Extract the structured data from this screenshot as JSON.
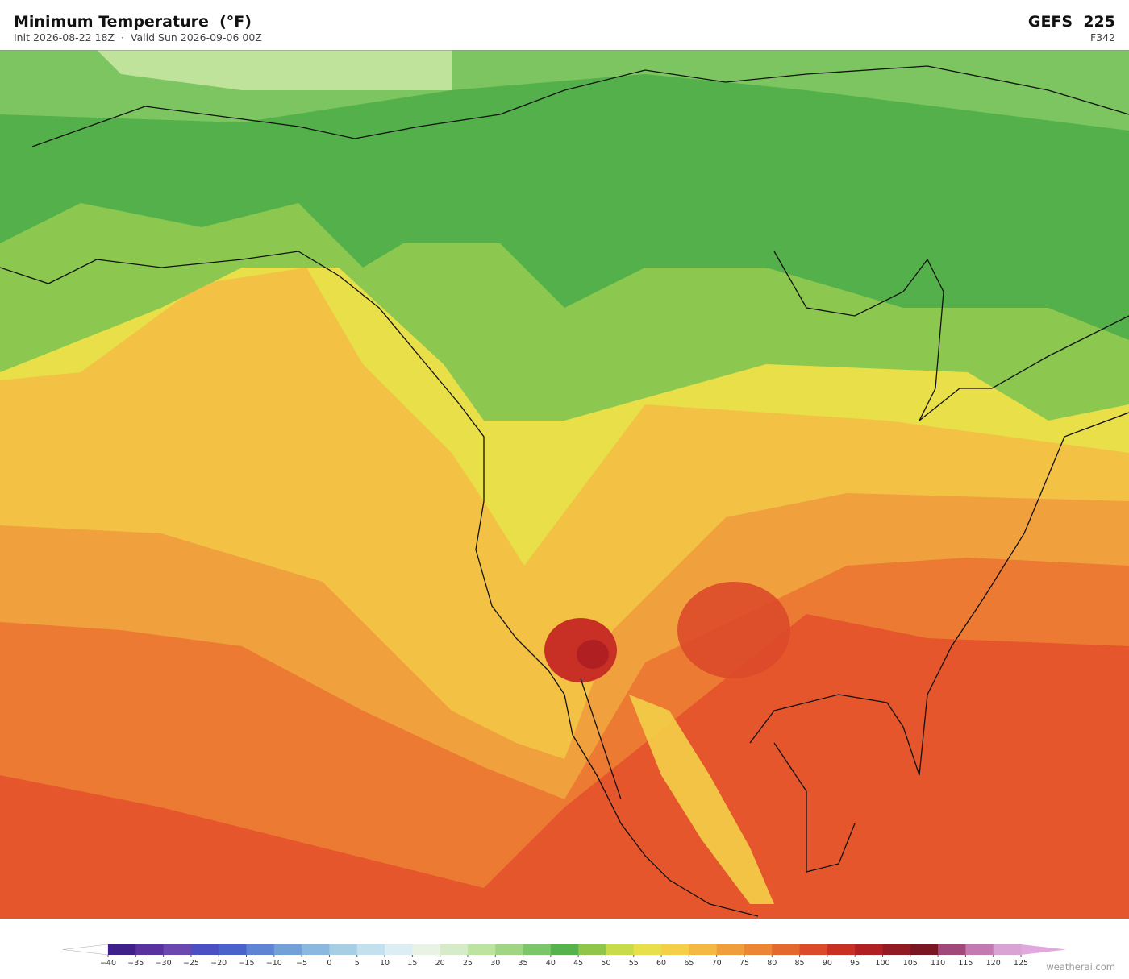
{
  "header": {
    "title": "Minimum Temperature  (°F)",
    "subtitle": "Init 2026-08-22 18Z  ·  Valid Sun 2026-09-06 00Z",
    "model": "GEFS  225",
    "forecast_hour": "F342"
  },
  "colorbar": {
    "ticks": [
      {
        "value": -40,
        "label": "−40"
      },
      {
        "value": -35,
        "label": "−35"
      },
      {
        "value": -30,
        "label": "−30"
      },
      {
        "value": -25,
        "label": "−25"
      },
      {
        "value": -20,
        "label": "−20"
      },
      {
        "value": -15,
        "label": "−15"
      },
      {
        "value": -10,
        "label": "−10"
      },
      {
        "value": -5,
        "label": "−5"
      },
      0,
      5,
      10,
      15,
      20,
      25,
      30,
      35,
      40,
      45,
      50,
      55,
      60,
      65,
      70,
      75,
      80,
      85,
      90,
      95,
      100,
      105,
      110,
      115,
      120,
      125
    ],
    "colors": [
      "#3f1f8a",
      "#5a32a0",
      "#6a48b0",
      "#4b4fc4",
      "#4a63cc",
      "#5f84d4",
      "#74a0d8",
      "#8bb8de",
      "#a6cfe6",
      "#c3e0ee",
      "#dceef3",
      "#e8f3e6",
      "#d6ecc8",
      "#bde3a0",
      "#9fd585",
      "#7cc56a",
      "#57b24e",
      "#8fc54a",
      "#c8dc4a",
      "#e8e04a",
      "#f4cf48",
      "#f4b942",
      "#f09e3c",
      "#ec8534",
      "#e5682e",
      "#dc4a2a",
      "#c83026",
      "#b01f22",
      "#921a22",
      "#7a1622",
      "#a0487a",
      "#c27ab0",
      "#d9a3d3"
    ],
    "under_color": "#ffffff",
    "over_color": "#e0a8dc"
  },
  "footer": {
    "credit": "weatherai.com"
  }
}
